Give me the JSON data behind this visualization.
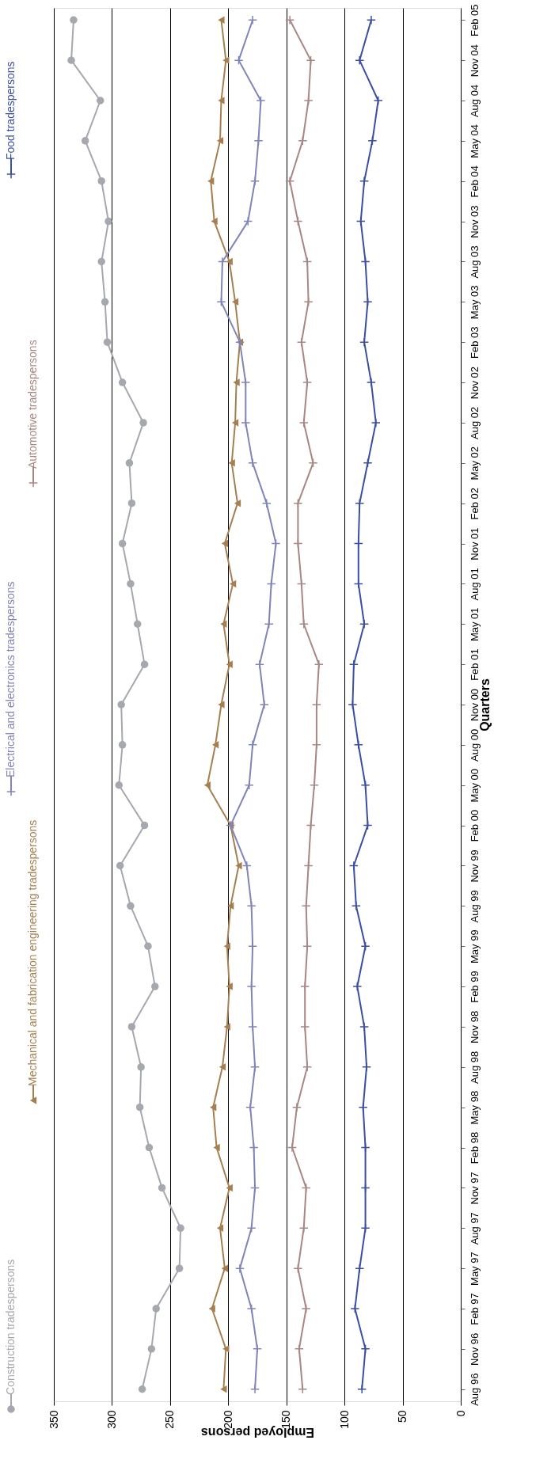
{
  "chart_data": {
    "type": "line",
    "orientation": "horizontal",
    "xlabel": "Employed persons",
    "ylabel": "Quarters",
    "categories": [
      "Feb 05",
      "Nov 04",
      "Aug 04",
      "May 04",
      "Feb 04",
      "Nov 03",
      "Aug 03",
      "May 03",
      "Feb 03",
      "Nov 02",
      "Aug 02",
      "May 02",
      "Feb 02",
      "Nov 01",
      "Aug 01",
      "May 01",
      "Feb 01",
      "Nov 00",
      "Aug 00",
      "May 00",
      "Feb 00",
      "Nov 99",
      "Aug 99",
      "May 99",
      "Feb 99",
      "Nov 98",
      "Aug 98",
      "May 98",
      "Feb 98",
      "Nov 97",
      "Aug 97",
      "May 97",
      "Feb 97",
      "Nov 96",
      "Aug 96"
    ],
    "series": [
      {
        "name": "Construction tradespersons",
        "color": "#a6a8b0",
        "marker": "circle",
        "values": [
          333,
          335,
          310,
          323,
          309,
          303,
          309,
          306,
          304,
          291,
          273,
          285,
          283,
          291,
          284,
          278,
          272,
          292,
          291,
          294,
          272,
          293,
          284,
          269,
          263,
          283,
          275,
          276,
          268,
          257,
          241,
          242,
          262,
          266,
          274
        ]
      },
      {
        "name": "Mechanical and fabrication engineering tradespersons",
        "color": "#a67f50",
        "marker": "triangle",
        "values": [
          206,
          202,
          206,
          207,
          215,
          212,
          199,
          194,
          190,
          193,
          194,
          197,
          192,
          203,
          196,
          204,
          199,
          206,
          211,
          218,
          198,
          191,
          198,
          201,
          199,
          201,
          205,
          213,
          210,
          199,
          207,
          203,
          214,
          202,
          204
        ]
      },
      {
        "name": "Electrical and electronics tradespersons",
        "color": "#7f85b8",
        "marker": "cross",
        "values": [
          179,
          191,
          172,
          174,
          177,
          183,
          205,
          206,
          190,
          185,
          185,
          179,
          167,
          159,
          163,
          165,
          173,
          169,
          179,
          182,
          198,
          184,
          180,
          179,
          180,
          179,
          177,
          181,
          178,
          177,
          180,
          190,
          180,
          175,
          177
        ]
      },
      {
        "name": "Automotive tradespersons",
        "color": "#a88783",
        "marker": "cross",
        "values": [
          147,
          129,
          131,
          136,
          147,
          140,
          132,
          131,
          137,
          132,
          135,
          127,
          140,
          140,
          137,
          135,
          122,
          124,
          124,
          126,
          129,
          131,
          133,
          132,
          134,
          134,
          132,
          141,
          145,
          133,
          135,
          140,
          133,
          139,
          136
        ]
      },
      {
        "name": "Food tradespersons",
        "color": "#3b4fa0",
        "marker": "cross",
        "values": [
          77,
          87,
          71,
          76,
          83,
          86,
          82,
          80,
          83,
          77,
          73,
          80,
          87,
          88,
          88,
          83,
          92,
          93,
          88,
          82,
          80,
          92,
          90,
          82,
          89,
          83,
          81,
          84,
          82,
          82,
          82,
          87,
          91,
          82,
          85
        ]
      }
    ],
    "xlim": [
      350,
      0
    ],
    "xticks": [
      350,
      300,
      250,
      200,
      150,
      100,
      50,
      0
    ],
    "grid": "x",
    "legend": "left"
  }
}
